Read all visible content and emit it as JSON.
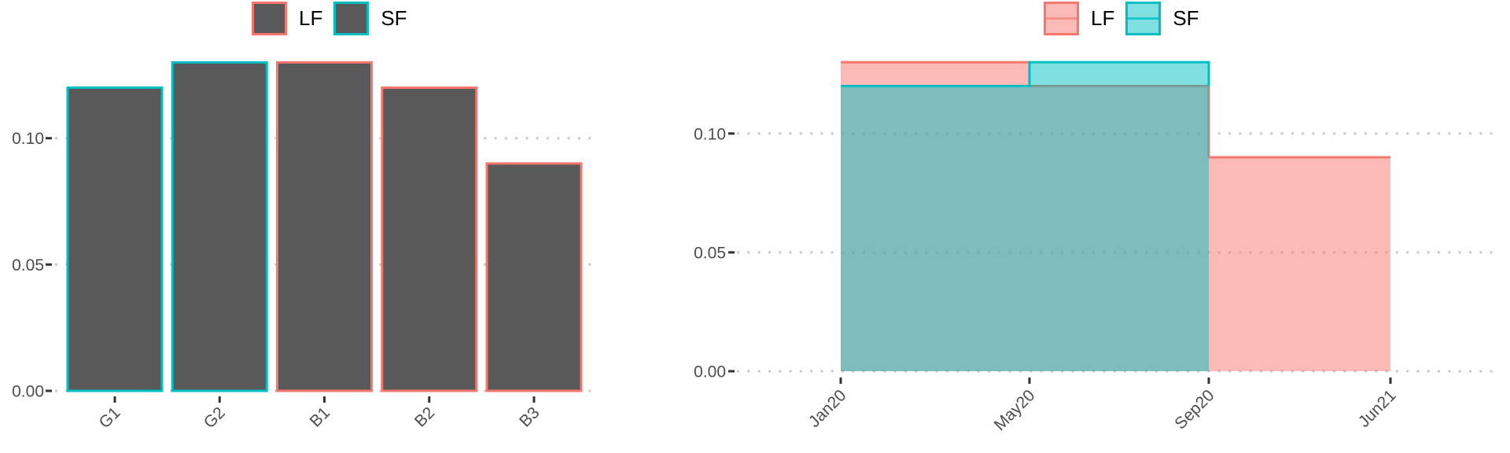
{
  "page": {
    "background": "#FFFFFF"
  },
  "colors": {
    "lf": "#F8766D",
    "sf": "#00BFC4",
    "bar_fill": "#595959",
    "grid": "#C9C9C9",
    "tick_mark": "#333333",
    "tick_text": "#4D4D4D",
    "legend_text": "#000000"
  },
  "chart_data": [
    {
      "type": "bar",
      "title": "",
      "xlabel": "",
      "ylabel": "",
      "legend": {
        "position": "top-center",
        "items": [
          {
            "label": "LF",
            "color": "#F8766D"
          },
          {
            "label": "SF",
            "color": "#00BFC4"
          }
        ]
      },
      "categories": [
        "G1",
        "G2",
        "B1",
        "B2",
        "B3"
      ],
      "values": [
        0.12,
        0.13,
        0.13,
        0.12,
        0.09
      ],
      "bar_outline_group": [
        "SF",
        "SF",
        "LF",
        "LF",
        "LF"
      ],
      "bar_fill": "#595959",
      "ylim": [
        0,
        0.135
      ],
      "yticks": [
        {
          "value": 0.0,
          "label": "0.00"
        },
        {
          "value": 0.05,
          "label": "0.05"
        },
        {
          "value": 0.1,
          "label": "0.10"
        }
      ],
      "grid": "horizontal-dotted",
      "x_tick_label_angle": 45
    },
    {
      "type": "step-area",
      "title": "",
      "xlabel": "",
      "ylabel": "",
      "legend": {
        "position": "top-center",
        "items": [
          {
            "label": "LF",
            "color": "#F8766D"
          },
          {
            "label": "SF",
            "color": "#00BFC4"
          }
        ]
      },
      "x_breaks": [
        "Jan20",
        "May20",
        "Sep20",
        "Jun21"
      ],
      "fill_opacity": 0.5,
      "series": [
        {
          "name": "LF",
          "color": "#F8766D",
          "steps": [
            {
              "x_from": "Jan20",
              "x_to": "May20",
              "value": 0.13
            },
            {
              "x_from": "May20",
              "x_to": "Sep20",
              "value": 0.12
            },
            {
              "x_from": "Sep20",
              "x_to": "Jun21",
              "value": 0.09
            }
          ],
          "line_end_drop_to": null
        },
        {
          "name": "SF",
          "color": "#00BFC4",
          "steps": [
            {
              "x_from": "Jan20",
              "x_to": "May20",
              "value": 0.12
            },
            {
              "x_from": "May20",
              "x_to": "Sep20",
              "value": 0.13
            }
          ],
          "line_end_drop_to": 0.12
        }
      ],
      "ylim": [
        0,
        0.135
      ],
      "yticks": [
        {
          "value": 0.0,
          "label": "0.00"
        },
        {
          "value": 0.05,
          "label": "0.05"
        },
        {
          "value": 0.1,
          "label": "0.10"
        }
      ],
      "grid": "horizontal-dotted",
      "x_tick_label_angle": 45
    }
  ]
}
